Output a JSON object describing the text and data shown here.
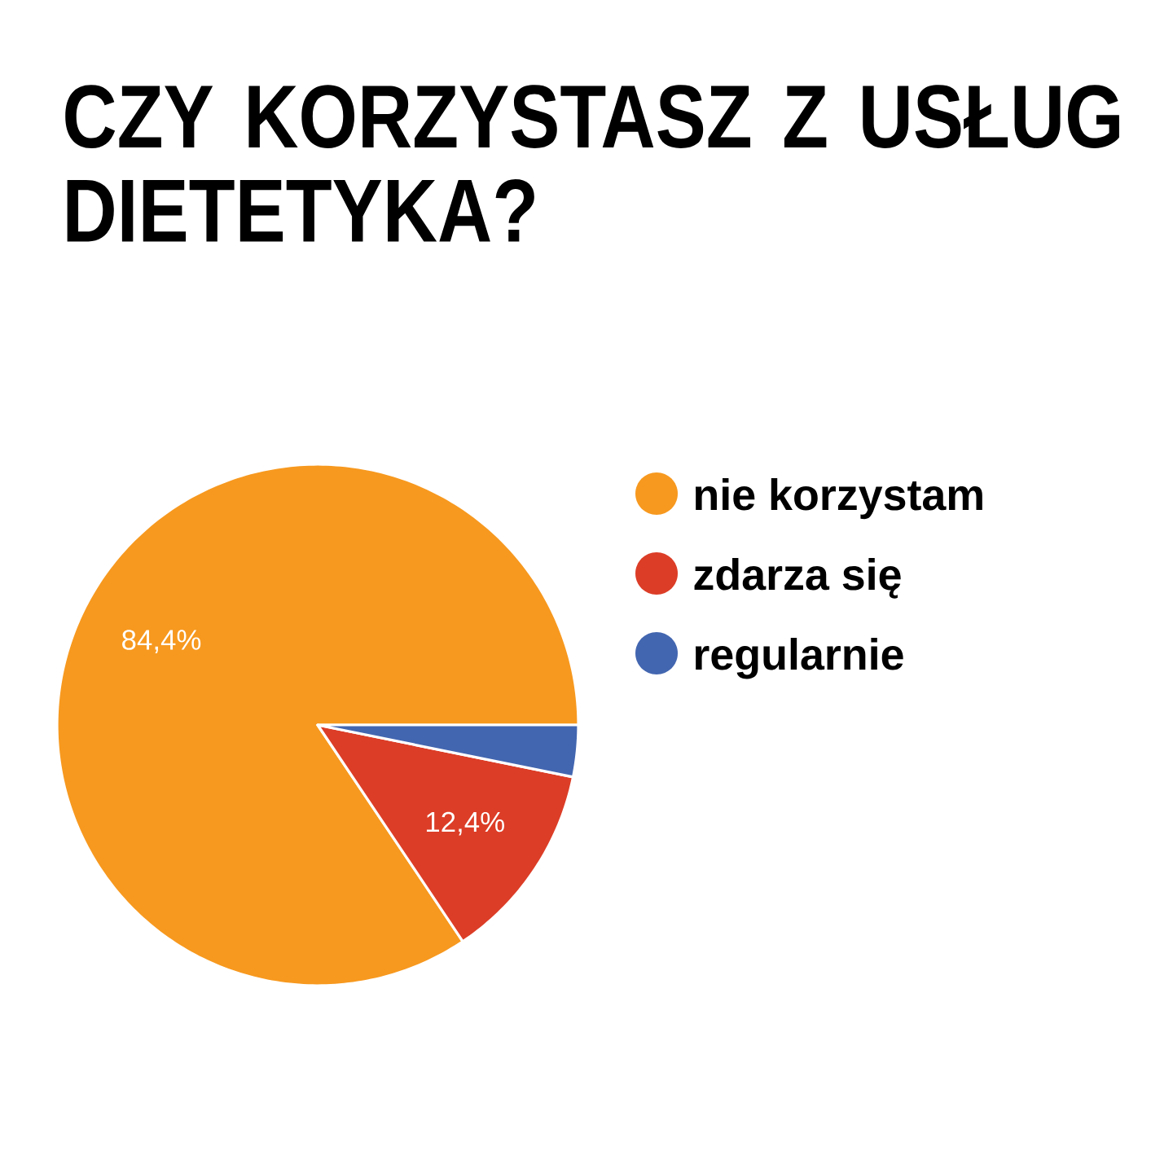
{
  "chart_data": {
    "type": "pie",
    "title": "CZY KORZYSTASZ Z USŁUG DIETETYKA?",
    "categories": [
      "nie korzystam",
      "zdarza się",
      "regularnie"
    ],
    "values": [
      84.4,
      12.4,
      3.2
    ],
    "colors": [
      "#f7991f",
      "#dc3d27",
      "#4366b0"
    ],
    "value_labels": [
      "84,4%",
      "12,4%",
      null
    ],
    "legend": "right"
  }
}
